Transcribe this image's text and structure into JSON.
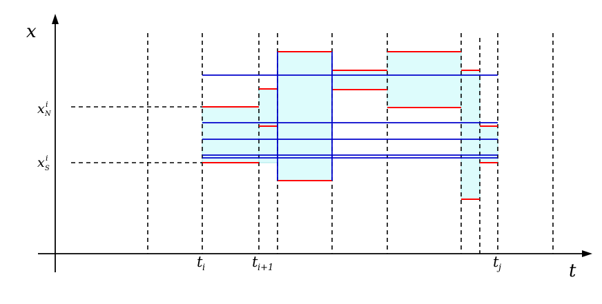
{
  "axes": {
    "x_label": "t",
    "y_label": "x"
  },
  "x_ticks": {
    "ti": {
      "base": "t",
      "sub": "i"
    },
    "ti1": {
      "base": "t",
      "sub": "i+1"
    },
    "tj": {
      "base": "t",
      "sub": "j"
    }
  },
  "y_ticks": {
    "xN": {
      "base": "x",
      "sup": "i",
      "sub": "N"
    },
    "xS": {
      "base": "x",
      "sup": "i",
      "sub": "S"
    }
  },
  "colors": {
    "red_series": "#ff0000",
    "blue_series": "#0000cc",
    "shading": "#ddfcfc",
    "shading_edge": "#a8e8ea",
    "axes": "#000000"
  }
}
